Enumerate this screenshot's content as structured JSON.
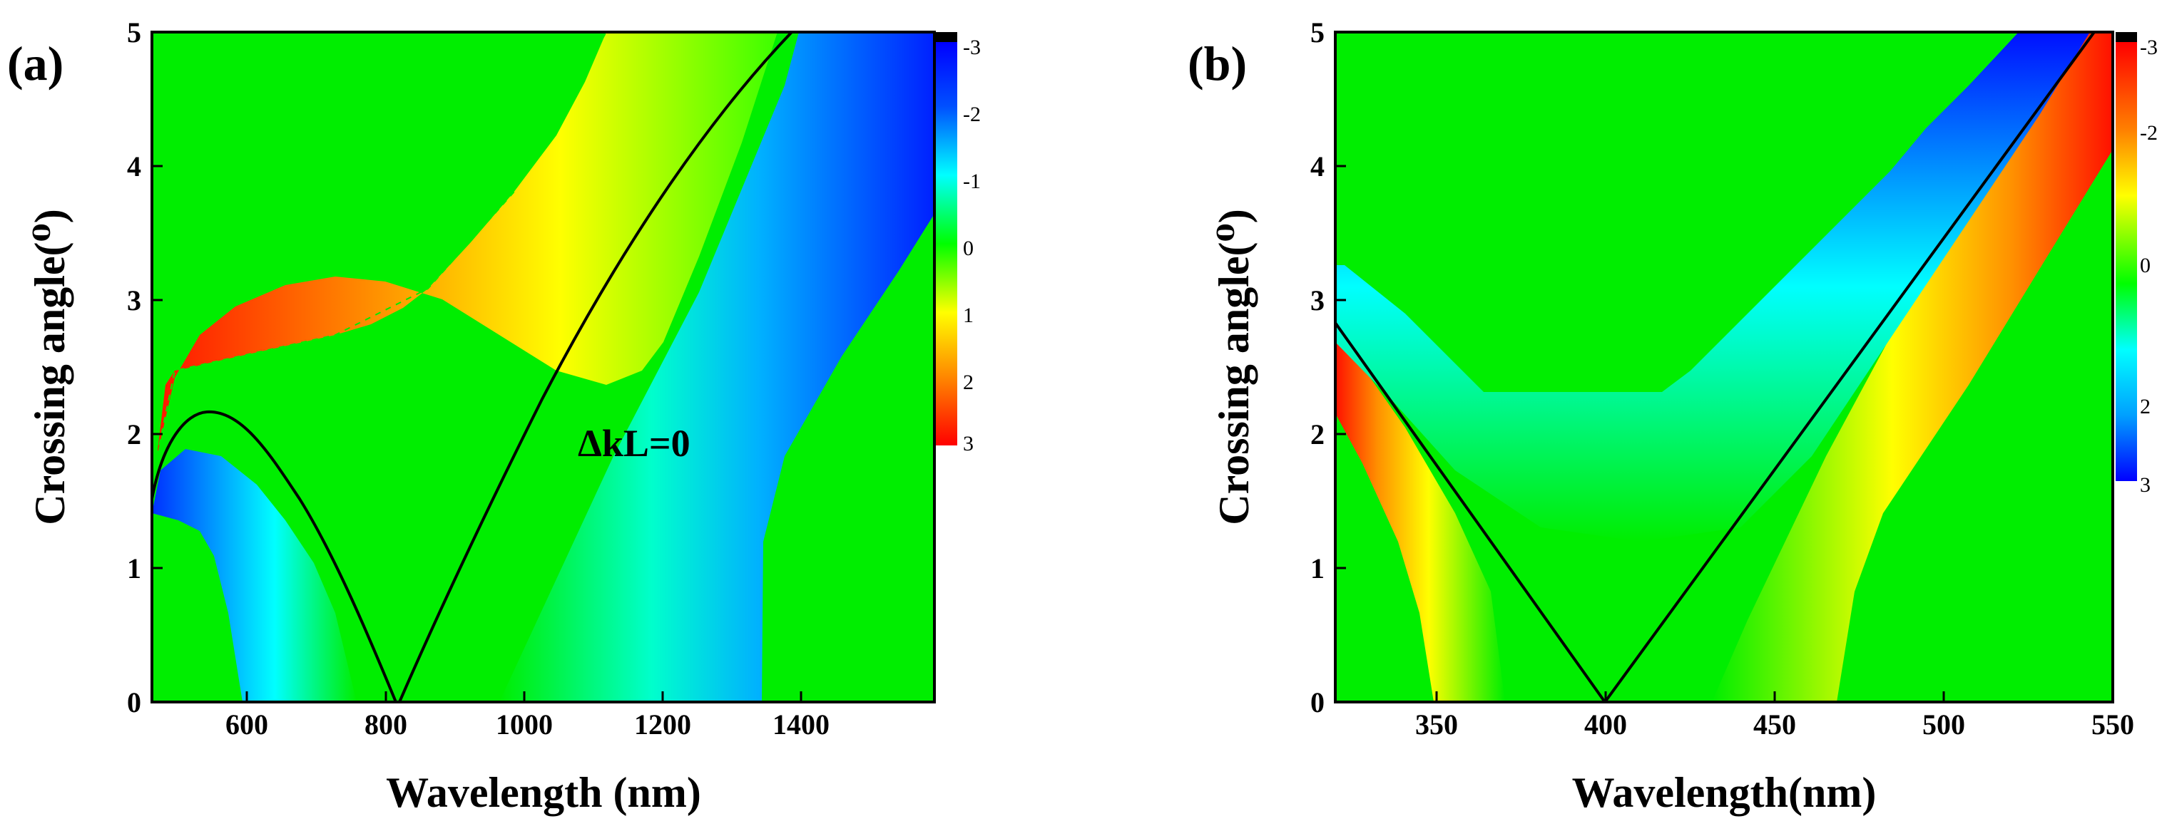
{
  "chart_data": [
    {
      "type": "heatmap",
      "panel_label": "(a)",
      "xlabel": "Wavelength (nm)",
      "ylabel": "Crossing angle(⁰)",
      "xlim": [
        450,
        1580
      ],
      "ylim": [
        0,
        5
      ],
      "x_ticks": [
        600,
        800,
        1000,
        1200,
        1400
      ],
      "y_ticks": [
        0,
        1,
        2,
        3,
        4,
        5
      ],
      "colorbar": {
        "range": [
          -3,
          3
        ],
        "ticks": [
          -3,
          -2,
          -1,
          0,
          1,
          2,
          3
        ],
        "tick_labels": [
          "-3",
          "-2",
          "-1",
          "0",
          "1",
          "2",
          "3"
        ],
        "top_color": "#000000",
        "bottom_color": "#ff0000",
        "colors_top_to_bottom": [
          "#0000ff",
          "#00a0ff",
          "#00ffff",
          "#00ff00",
          "#ffff00",
          "#ff8000",
          "#ff0000"
        ]
      },
      "annotation": "ΔkL=0",
      "background_color": "#00ee00",
      "contour_line_color": "#000000"
    },
    {
      "type": "heatmap",
      "panel_label": "(b)",
      "xlabel": "Wavelength(nm)",
      "ylabel": "Crossing angle(⁰)",
      "xlim": [
        320,
        550
      ],
      "ylim": [
        0,
        5
      ],
      "x_ticks": [
        350,
        400,
        450,
        500,
        550
      ],
      "y_ticks": [
        0,
        1,
        2,
        3,
        4,
        5
      ],
      "colorbar": {
        "range": [
          -3,
          3
        ],
        "ticks": [
          -3,
          -2,
          0,
          2,
          3
        ],
        "tick_labels": [
          "-3",
          "-2",
          "0",
          "2",
          "3"
        ],
        "top_color": "#000000",
        "colors_top_to_bottom": [
          "#ff0000",
          "#ff8000",
          "#ffff00",
          "#00ff00",
          "#00ffff",
          "#00a0ff",
          "#0000ff"
        ]
      },
      "background_color": "#00ee00",
      "contour_line_color": "#000000"
    }
  ]
}
